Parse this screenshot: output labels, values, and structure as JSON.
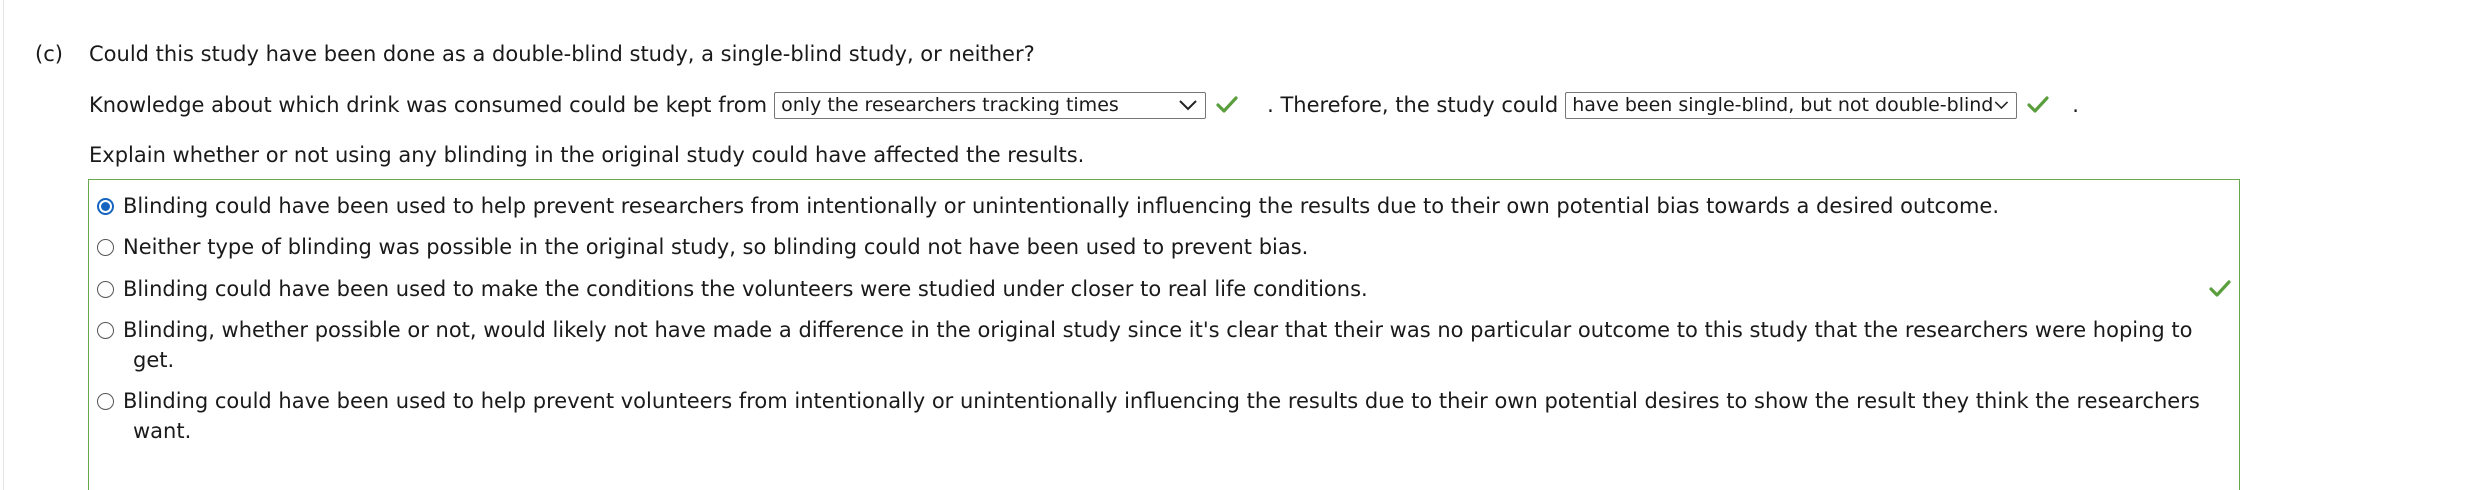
{
  "question": {
    "part_label": "(c)",
    "text": "Could this study have been done as a double-blind study, a single-blind study, or neither?"
  },
  "knowledge_row": {
    "prefix": "Knowledge about which drink was consumed could be kept from",
    "select1_value": "only the researchers tracking times",
    "middle": ". Therefore, the study could",
    "select2_value": "have been single-blind, but not double-blind",
    "suffix": "."
  },
  "explain": {
    "prompt": "Explain whether or not using any blinding in the original study could have affected the results."
  },
  "options": [
    {
      "line1": "Blinding could have been used to help prevent researchers from intentionally or unintentionally influencing the results due to their own potential bias towards a desired outcome.",
      "selected": true
    },
    {
      "line1": "Neither type of blinding was possible in the original study, so blinding could not have been used to prevent bias.",
      "selected": false
    },
    {
      "line1": "Blinding could have been used to make the conditions the volunteers were studied under closer to real life conditions.",
      "selected": false
    },
    {
      "line1": "Blinding, whether possible or not, would likely not have made a difference in the original study since it's clear that their was no particular outcome to this study that the researchers were hoping to",
      "line2": "get.",
      "selected": false
    },
    {
      "line1": "Blinding could have been used to help prevent volunteers from intentionally or unintentionally influencing the results due to their own potential desires to show the result they think the researchers",
      "line2": "want.",
      "selected": false
    }
  ],
  "icons": {
    "chevron": "chevron-down-icon",
    "check": "checkmark-icon"
  },
  "colors": {
    "correct_green": "#5a9e3e",
    "radio_blue": "#1565c0",
    "box_border": "#6aa84f"
  }
}
